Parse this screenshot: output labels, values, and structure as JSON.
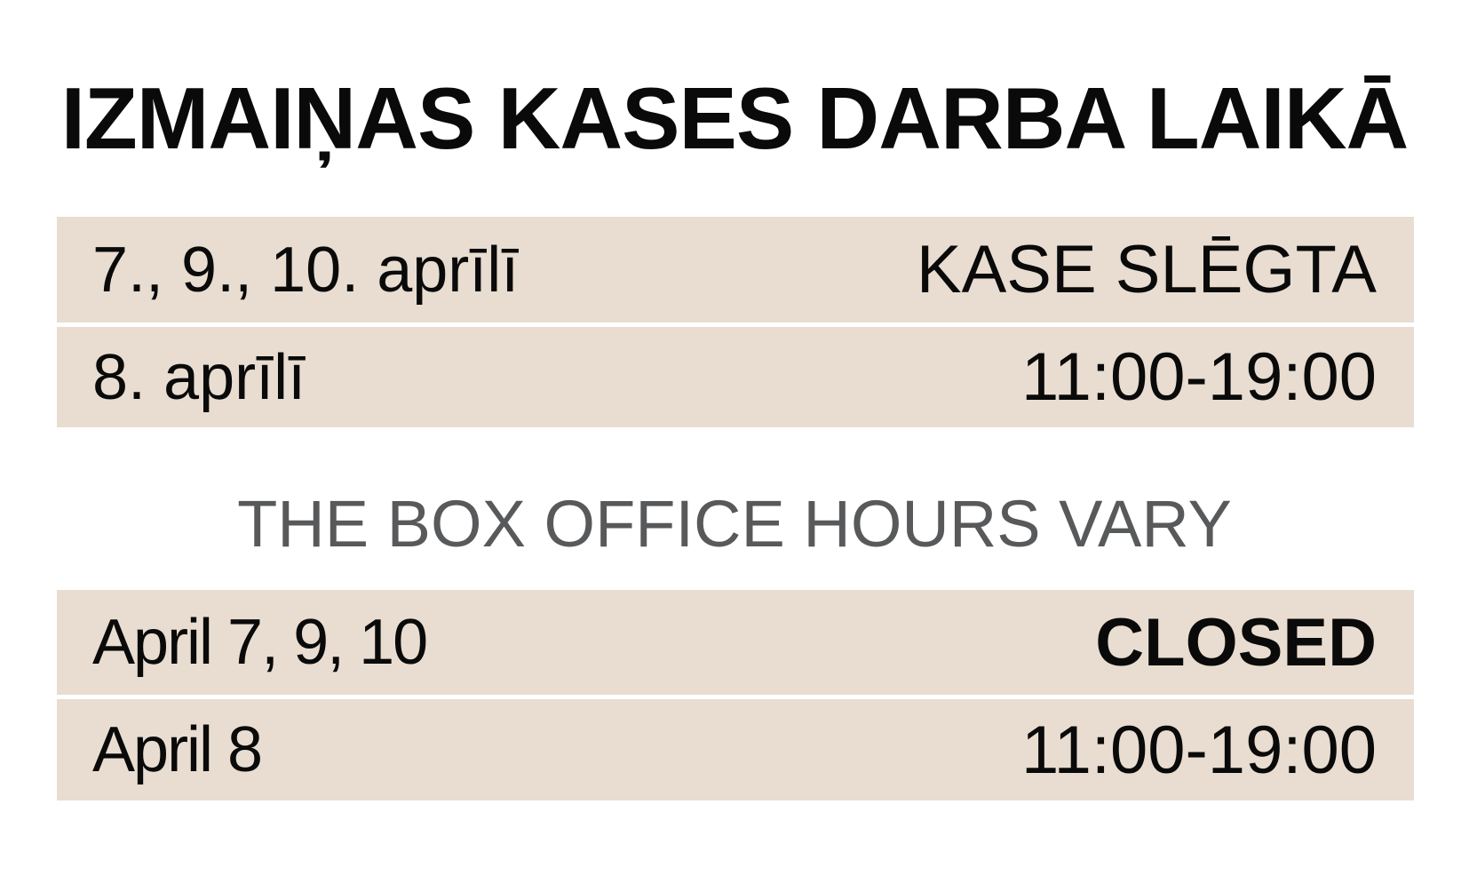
{
  "title": "IZMAIŅAS KASES DARBA LAIKĀ",
  "lv_rows": [
    {
      "date": "7., 9., 10.  aprīlī",
      "status": "KASE SLĒGTA"
    },
    {
      "date": "8. aprīlī",
      "status": "11:00-19:00"
    }
  ],
  "subtitle": "THE BOX OFFICE HOURS VARY",
  "en_rows": [
    {
      "date": "April 7, 9, 10",
      "status": "CLOSED"
    },
    {
      "date": "April 8",
      "status": "11:00-19:00"
    }
  ],
  "colors": {
    "band": "#e8ddd0",
    "subtitle": "#58595b",
    "text": "#0a0a0a"
  }
}
